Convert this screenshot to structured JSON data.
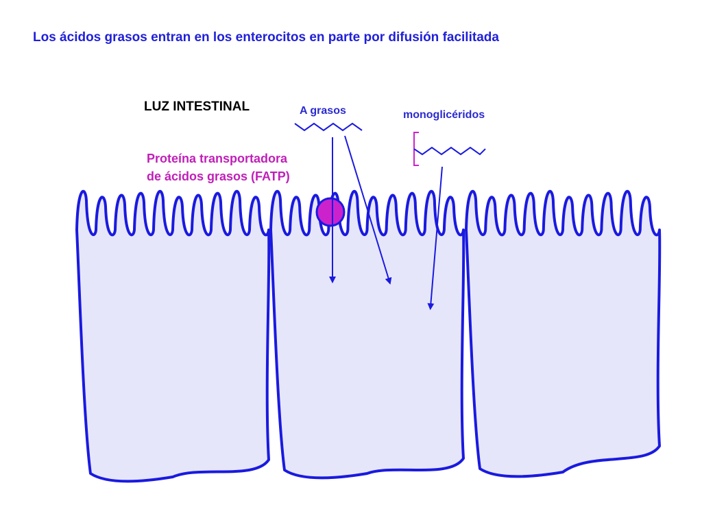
{
  "title": "Los ácidos grasos entran en los enterocitos en parte por difusión facilitada",
  "labels": {
    "lumen": "LUZ INTESTINAL",
    "fatp_line1": "Proteína transportadora",
    "fatp_line2": "de ácidos grasos (FATP)",
    "fatty_acids": "A grasos",
    "monoglycerides": "monoglicéridos"
  },
  "colors": {
    "cell_outline": "#1a1ae0",
    "cell_fill": "#e6e6fa",
    "title_text": "#2020d8",
    "protein": "#cc22cc",
    "protein_label": "#c020b8",
    "bracket": "#cc22cc"
  }
}
